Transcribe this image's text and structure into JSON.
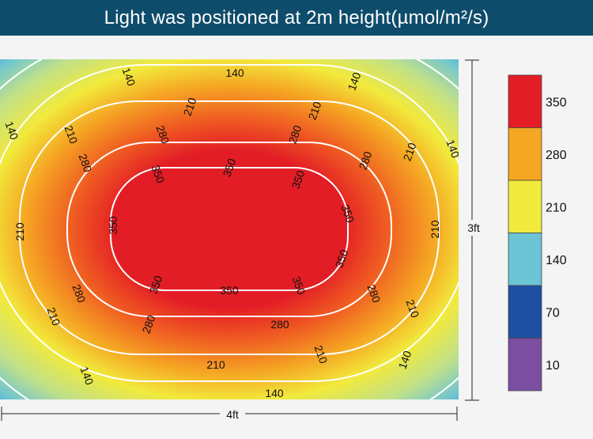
{
  "chart_data": {
    "type": "heatmap",
    "title": "Light was positioned at 2m height(µmol/m²/s)",
    "xlabel": "4ft",
    "ylabel": "3ft",
    "contour_levels": [
      140,
      210,
      280,
      350
    ],
    "legend": {
      "placement": "right",
      "entries": [
        {
          "label": "350",
          "color": "#e31d25"
        },
        {
          "label": "280",
          "color": "#f5a623"
        },
        {
          "label": "210",
          "color": "#f2ea3c"
        },
        {
          "label": "140",
          "color": "#6cc4d4"
        },
        {
          "label": "70",
          "color": "#1e4fa3"
        },
        {
          "label": "10",
          "color": "#7b4ea2"
        }
      ]
    }
  }
}
